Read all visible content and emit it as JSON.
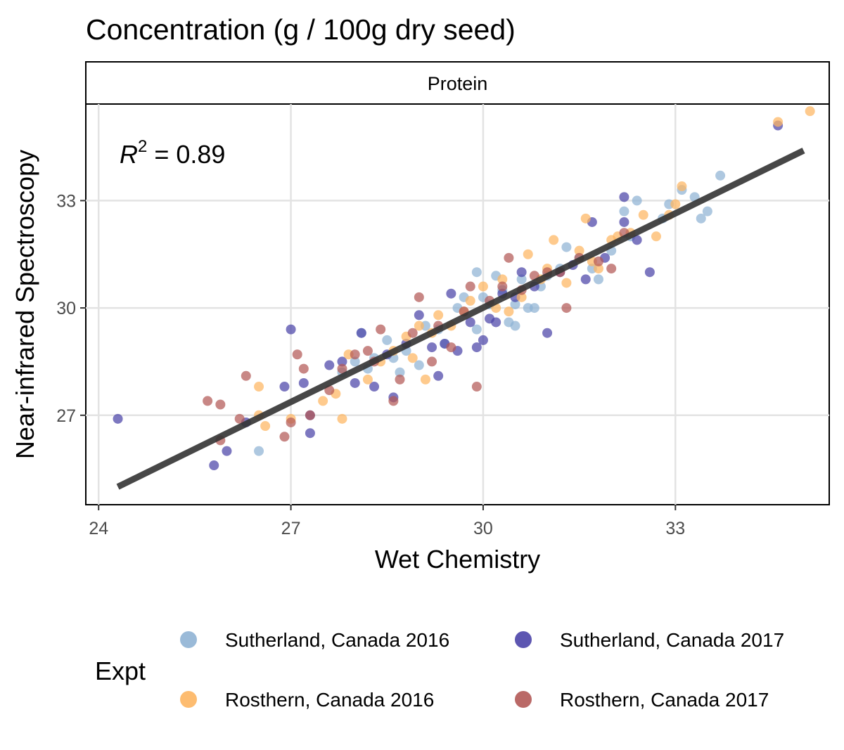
{
  "chart_data": {
    "type": "scatter",
    "title": "Concentration (g / 100g dry seed)",
    "facet_label": "Protein",
    "xlabel": "Wet Chemistry",
    "ylabel": "Near-infrared Spectroscopy",
    "annotation": {
      "r_symbol": "R",
      "r_exponent": "2",
      "r_value": " = 0.89"
    },
    "xlim": [
      23.8,
      35.4
    ],
    "ylim": [
      24.5,
      35.7
    ],
    "x_ticks": [
      24,
      27,
      30,
      33
    ],
    "y_ticks": [
      27,
      30,
      33
    ],
    "x_tick_labels": [
      "24",
      "27",
      "30",
      "33"
    ],
    "y_tick_labels": [
      "27",
      "30",
      "33"
    ],
    "grid": true,
    "legend": {
      "title": "Expt",
      "position": "bottom",
      "entries": [
        {
          "label": "Sutherland, Canada 2016",
          "color": "#8fb3d4"
        },
        {
          "label": "Sutherland, Canada 2017",
          "color": "#4b44a8"
        },
        {
          "label": "Rosthern, Canada 2016",
          "color": "#fdb561"
        },
        {
          "label": "Rosthern, Canada 2017",
          "color": "#b35956"
        }
      ]
    },
    "regression_line": {
      "x": [
        24.3,
        35.0
      ],
      "y": [
        25.0,
        34.4
      ],
      "color": "#333333"
    },
    "series": [
      {
        "name": "Sutherland, Canada 2016",
        "color": "#8fb3d4",
        "points": [
          [
            26.5,
            26.0
          ],
          [
            27.8,
            28.2
          ],
          [
            28.0,
            28.5
          ],
          [
            28.1,
            29.3
          ],
          [
            28.2,
            28.3
          ],
          [
            28.3,
            28.6
          ],
          [
            28.5,
            29.1
          ],
          [
            28.6,
            28.6
          ],
          [
            28.8,
            28.8
          ],
          [
            29.0,
            28.4
          ],
          [
            29.1,
            29.5
          ],
          [
            29.3,
            29.4
          ],
          [
            29.6,
            30.0
          ],
          [
            29.7,
            30.3
          ],
          [
            29.9,
            29.4
          ],
          [
            29.9,
            31.0
          ],
          [
            30.0,
            30.3
          ],
          [
            30.1,
            30.1
          ],
          [
            30.3,
            30.5
          ],
          [
            30.4,
            29.6
          ],
          [
            30.5,
            29.5
          ],
          [
            30.5,
            30.1
          ],
          [
            30.6,
            30.8
          ],
          [
            30.7,
            30.0
          ],
          [
            30.8,
            30.0
          ],
          [
            30.9,
            30.6
          ],
          [
            31.0,
            30.9
          ],
          [
            31.2,
            31.1
          ],
          [
            31.3,
            31.7
          ],
          [
            31.5,
            31.4
          ],
          [
            31.7,
            31.1
          ],
          [
            31.8,
            30.8
          ],
          [
            32.0,
            31.6
          ],
          [
            32.2,
            32.7
          ],
          [
            32.3,
            32.0
          ],
          [
            32.4,
            33.0
          ],
          [
            32.8,
            32.5
          ],
          [
            32.9,
            32.9
          ],
          [
            33.1,
            33.3
          ],
          [
            33.3,
            33.1
          ],
          [
            33.4,
            32.5
          ],
          [
            33.5,
            32.7
          ],
          [
            33.7,
            33.7
          ],
          [
            30.2,
            30.9
          ],
          [
            29.4,
            29.0
          ],
          [
            28.7,
            28.2
          ]
        ]
      },
      {
        "name": "Sutherland, Canada 2017",
        "color": "#4b44a8",
        "points": [
          [
            24.3,
            26.9
          ],
          [
            25.8,
            25.6
          ],
          [
            26.0,
            26.0
          ],
          [
            26.3,
            26.8
          ],
          [
            26.9,
            27.8
          ],
          [
            27.0,
            29.4
          ],
          [
            27.2,
            27.9
          ],
          [
            27.3,
            27.0
          ],
          [
            27.3,
            26.5
          ],
          [
            27.6,
            28.4
          ],
          [
            27.8,
            28.5
          ],
          [
            28.0,
            27.9
          ],
          [
            28.1,
            29.3
          ],
          [
            28.3,
            27.8
          ],
          [
            28.5,
            28.7
          ],
          [
            28.6,
            27.5
          ],
          [
            28.8,
            29.0
          ],
          [
            29.0,
            29.8
          ],
          [
            29.2,
            28.9
          ],
          [
            29.3,
            28.1
          ],
          [
            29.4,
            29.0
          ],
          [
            29.5,
            30.4
          ],
          [
            29.6,
            28.8
          ],
          [
            29.9,
            28.9
          ],
          [
            30.0,
            29.1
          ],
          [
            30.1,
            29.7
          ],
          [
            30.3,
            30.4
          ],
          [
            30.5,
            30.3
          ],
          [
            30.6,
            31.0
          ],
          [
            30.8,
            30.6
          ],
          [
            31.0,
            29.3
          ],
          [
            31.2,
            31.0
          ],
          [
            31.4,
            31.2
          ],
          [
            31.6,
            30.8
          ],
          [
            31.7,
            32.4
          ],
          [
            31.9,
            31.4
          ],
          [
            32.2,
            32.4
          ],
          [
            32.2,
            33.1
          ],
          [
            32.4,
            31.9
          ],
          [
            32.6,
            31.0
          ],
          [
            34.6,
            35.1
          ],
          [
            29.8,
            29.6
          ],
          [
            30.2,
            29.6
          ]
        ]
      },
      {
        "name": "Rosthern, Canada 2016",
        "color": "#fdb561",
        "points": [
          [
            26.5,
            27.8
          ],
          [
            26.5,
            27.0
          ],
          [
            26.6,
            26.7
          ],
          [
            27.0,
            26.9
          ],
          [
            27.5,
            27.4
          ],
          [
            27.7,
            27.6
          ],
          [
            27.8,
            26.9
          ],
          [
            27.9,
            28.7
          ],
          [
            28.2,
            28.0
          ],
          [
            28.4,
            28.5
          ],
          [
            28.6,
            28.8
          ],
          [
            28.8,
            29.2
          ],
          [
            28.9,
            28.6
          ],
          [
            29.0,
            29.5
          ],
          [
            29.2,
            29.3
          ],
          [
            29.3,
            29.8
          ],
          [
            29.5,
            29.5
          ],
          [
            29.7,
            29.9
          ],
          [
            29.8,
            30.2
          ],
          [
            30.0,
            30.6
          ],
          [
            30.2,
            30.0
          ],
          [
            30.3,
            30.8
          ],
          [
            30.4,
            29.9
          ],
          [
            30.6,
            30.3
          ],
          [
            30.7,
            31.5
          ],
          [
            30.9,
            30.8
          ],
          [
            31.0,
            31.1
          ],
          [
            31.1,
            31.9
          ],
          [
            31.3,
            30.7
          ],
          [
            31.5,
            31.6
          ],
          [
            31.7,
            31.3
          ],
          [
            31.8,
            31.1
          ],
          [
            32.0,
            31.9
          ],
          [
            32.1,
            32.0
          ],
          [
            32.3,
            32.1
          ],
          [
            32.5,
            32.6
          ],
          [
            32.7,
            32.0
          ],
          [
            32.9,
            32.6
          ],
          [
            33.0,
            32.9
          ],
          [
            33.1,
            33.4
          ],
          [
            34.6,
            35.2
          ],
          [
            35.1,
            35.5
          ],
          [
            31.6,
            32.5
          ],
          [
            29.1,
            28.0
          ]
        ]
      },
      {
        "name": "Rosthern, Canada 2017",
        "color": "#b35956",
        "points": [
          [
            25.7,
            27.4
          ],
          [
            25.9,
            27.3
          ],
          [
            25.9,
            26.3
          ],
          [
            26.2,
            26.9
          ],
          [
            26.3,
            28.1
          ],
          [
            26.9,
            26.4
          ],
          [
            27.0,
            26.8
          ],
          [
            27.1,
            28.7
          ],
          [
            27.2,
            28.3
          ],
          [
            27.3,
            27.0
          ],
          [
            27.6,
            27.7
          ],
          [
            27.8,
            28.3
          ],
          [
            28.0,
            28.7
          ],
          [
            28.2,
            28.8
          ],
          [
            28.4,
            29.4
          ],
          [
            28.6,
            27.4
          ],
          [
            28.7,
            28.0
          ],
          [
            28.9,
            29.3
          ],
          [
            29.0,
            30.3
          ],
          [
            29.2,
            28.5
          ],
          [
            29.3,
            29.5
          ],
          [
            29.5,
            28.9
          ],
          [
            29.7,
            29.9
          ],
          [
            29.9,
            27.8
          ],
          [
            30.1,
            30.2
          ],
          [
            30.3,
            30.6
          ],
          [
            30.4,
            31.4
          ],
          [
            30.6,
            30.5
          ],
          [
            30.8,
            30.9
          ],
          [
            31.0,
            31.0
          ],
          [
            31.2,
            31.0
          ],
          [
            31.3,
            30.0
          ],
          [
            31.5,
            31.4
          ],
          [
            31.8,
            31.3
          ],
          [
            32.0,
            31.1
          ],
          [
            32.2,
            32.1
          ],
          [
            29.8,
            30.6
          ],
          [
            28.3,
            28.5
          ]
        ]
      }
    ]
  }
}
